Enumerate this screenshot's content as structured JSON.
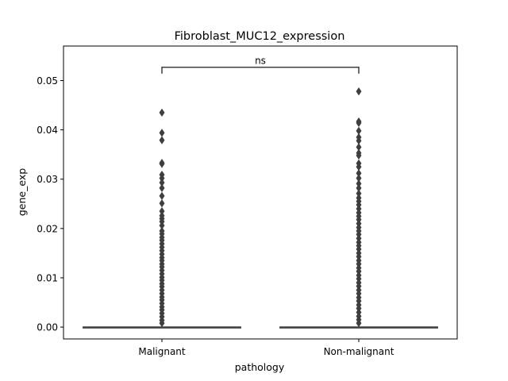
{
  "chart_data": {
    "type": "box",
    "title": "Fibroblast_MUC12_expression",
    "xlabel": "pathology",
    "ylabel": "gene_exp",
    "categories": [
      "Malignant",
      "Non-malignant"
    ],
    "ylim": [
      -0.0024,
      0.057
    ],
    "yticks": [
      0.0,
      0.01,
      0.02,
      0.03,
      0.04,
      0.05
    ],
    "ytick_labels": [
      "0.00",
      "0.01",
      "0.02",
      "0.03",
      "0.04",
      "0.05"
    ],
    "grid": false,
    "annotation": {
      "text": "ns",
      "y": 0.0527,
      "between": [
        "Malignant",
        "Non-malignant"
      ]
    },
    "series": [
      {
        "category": "Malignant",
        "box": {
          "min": 0.0,
          "q1": 0.0,
          "median": 0.0,
          "q3": 0.0,
          "max": 0.0
        },
        "outliers": [
          0.0435,
          0.0394,
          0.0379,
          0.0333,
          0.0331,
          0.0309,
          0.0302,
          0.0293,
          0.0282,
          0.0266,
          0.0251,
          0.0235,
          0.0226,
          0.022,
          0.0214,
          0.0206,
          0.0195,
          0.0189,
          0.0182,
          0.0176,
          0.0169,
          0.0162,
          0.0155,
          0.0148,
          0.0141,
          0.0135,
          0.0128,
          0.0122,
          0.0115,
          0.0108,
          0.0101,
          0.0095,
          0.0088,
          0.0082,
          0.0075,
          0.0068,
          0.0061,
          0.0055,
          0.0048,
          0.0041,
          0.0035,
          0.0028,
          0.0021,
          0.0014,
          0.0008
        ]
      },
      {
        "category": "Non-malignant",
        "box": {
          "min": 0.0,
          "q1": 0.0,
          "median": 0.0,
          "q3": 0.0,
          "max": 0.0
        },
        "outliers": [
          0.0478,
          0.0417,
          0.0414,
          0.0398,
          0.0385,
          0.0378,
          0.0365,
          0.0353,
          0.0348,
          0.0332,
          0.0325,
          0.0312,
          0.0302,
          0.0291,
          0.0282,
          0.0271,
          0.0262,
          0.0255,
          0.0248,
          0.024,
          0.0232,
          0.0225,
          0.0218,
          0.021,
          0.0202,
          0.0195,
          0.0188,
          0.018,
          0.0172,
          0.0165,
          0.0158,
          0.015,
          0.0143,
          0.0135,
          0.0128,
          0.012,
          0.0113,
          0.0105,
          0.0098,
          0.009,
          0.0083,
          0.0075,
          0.0068,
          0.006,
          0.0053,
          0.0045,
          0.0038,
          0.003,
          0.0022,
          0.0015,
          0.0008
        ]
      }
    ],
    "colors": {
      "box_edge": "#3f3f3f",
      "outlier": "#3f3f3f",
      "axis": "#000000",
      "bracket": "#3f3f3f"
    }
  }
}
